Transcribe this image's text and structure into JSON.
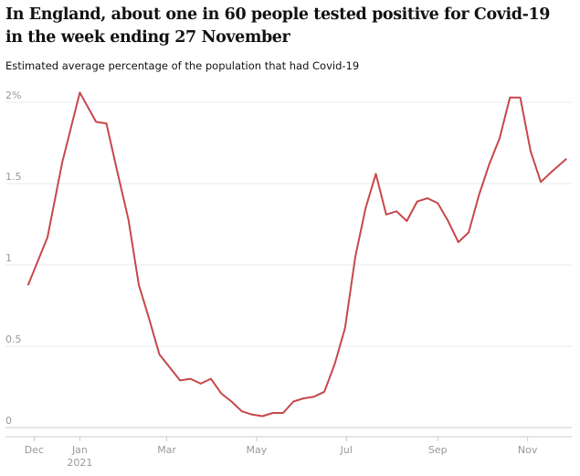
{
  "header": {
    "title": "In England, about one in 60 people tested positive for Covid-19 in the week ending 27 November",
    "subtitle": "Estimated average percentage of the population that had Covid-19"
  },
  "colors": {
    "line": "#c7474b",
    "grid": "#e8e8e8",
    "axis": "#cccccc",
    "tick_text": "#999999"
  },
  "chart_data": {
    "type": "line",
    "title": "In England, about one in 60 people tested positive for Covid-19 in the week ending 27 November",
    "subtitle": "Estimated average percentage of the population that had Covid-19",
    "xlabel": "",
    "ylabel": "",
    "x_range": [
      "2020-11-27",
      "2021-12-01"
    ],
    "ylim": [
      0,
      2
    ],
    "grid": true,
    "y_ticks": [
      {
        "value": 0,
        "label": "0"
      },
      {
        "value": 0.5,
        "label": "0.5"
      },
      {
        "value": 1,
        "label": "1"
      },
      {
        "value": 1.5,
        "label": "1.5"
      },
      {
        "value": 2,
        "label": "2%"
      }
    ],
    "x_ticks": [
      {
        "date": "2020-12-01",
        "label": "Dec"
      },
      {
        "date": "2021-01-01",
        "label": "Jan",
        "sublabel": "2021"
      },
      {
        "date": "2021-03-01",
        "label": "Mar"
      },
      {
        "date": "2021-05-01",
        "label": "May"
      },
      {
        "date": "2021-07-01",
        "label": "Jul"
      },
      {
        "date": "2021-09-01",
        "label": "Sep"
      },
      {
        "date": "2021-11-01",
        "label": "Nov"
      }
    ],
    "series": [
      {
        "x": [
          "2020-11-27",
          "2020-12-10",
          "2020-12-20",
          "2021-01-01",
          "2021-01-12",
          "2021-01-19",
          "2021-01-27",
          "2021-02-03",
          "2021-02-10",
          "2021-02-17",
          "2021-02-24",
          "2021-03-03",
          "2021-03-10",
          "2021-03-17",
          "2021-03-24",
          "2021-03-31",
          "2021-04-07",
          "2021-04-14",
          "2021-04-21",
          "2021-04-28",
          "2021-05-05",
          "2021-05-12",
          "2021-05-19",
          "2021-05-26",
          "2021-06-02",
          "2021-06-09",
          "2021-06-16",
          "2021-06-23",
          "2021-06-30",
          "2021-07-07",
          "2021-07-14",
          "2021-07-21",
          "2021-07-28",
          "2021-08-04",
          "2021-08-11",
          "2021-08-18",
          "2021-08-25",
          "2021-09-01",
          "2021-09-08",
          "2021-09-15",
          "2021-09-22",
          "2021-09-29",
          "2021-10-06",
          "2021-10-13",
          "2021-10-20",
          "2021-10-27",
          "2021-11-03",
          "2021-11-10",
          "2021-11-17",
          "2021-11-27"
        ],
        "values": [
          0.88,
          1.17,
          1.63,
          2.06,
          1.88,
          1.87,
          1.55,
          1.28,
          0.88,
          0.67,
          0.45,
          0.37,
          0.29,
          0.3,
          0.27,
          0.3,
          0.21,
          0.16,
          0.1,
          0.08,
          0.07,
          0.09,
          0.09,
          0.16,
          0.18,
          0.19,
          0.22,
          0.39,
          0.61,
          1.05,
          1.35,
          1.56,
          1.31,
          1.33,
          1.27,
          1.39,
          1.41,
          1.38,
          1.27,
          1.14,
          1.2,
          1.43,
          1.62,
          1.78,
          2.03,
          2.03,
          1.7,
          1.51,
          1.57,
          1.65
        ]
      }
    ]
  }
}
